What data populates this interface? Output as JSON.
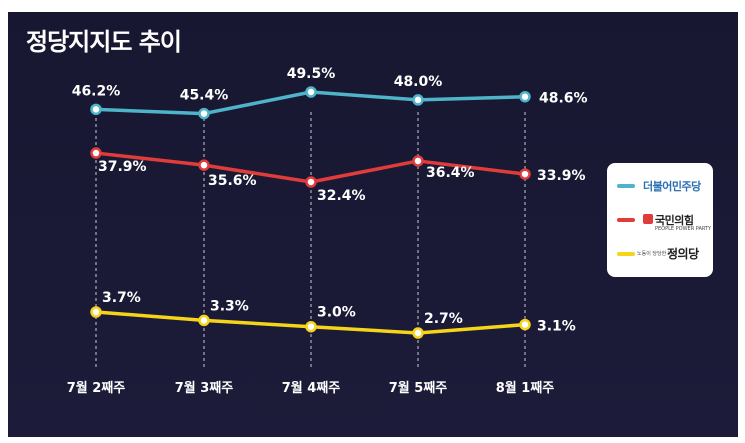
{
  "title": "정당지지도 추이",
  "colors": {
    "background": "#1a1a36",
    "democratic": "#4fb3c9",
    "ppp": "#e03c3c",
    "justice": "#f5d41a"
  },
  "chart_data": {
    "type": "line",
    "title": "정당지지도 추이",
    "categories": [
      "7월 2째주",
      "7월 3째주",
      "7월 4째주",
      "7월 5째주",
      "8월 1째주"
    ],
    "series": [
      {
        "name": "더불어민주당",
        "values": [
          46.2,
          45.4,
          49.5,
          48.0,
          48.6
        ],
        "labels": [
          "46.2%",
          "45.4%",
          "49.5%",
          "48.0%",
          "48.6%"
        ],
        "color": "#4fb3c9"
      },
      {
        "name": "국민의힘",
        "values": [
          37.9,
          35.6,
          32.4,
          36.4,
          33.9
        ],
        "labels": [
          "37.9%",
          "35.6%",
          "32.4%",
          "36.4%",
          "33.9%"
        ],
        "color": "#e03c3c"
      },
      {
        "name": "정의당",
        "values": [
          3.7,
          3.3,
          3.0,
          2.7,
          3.1
        ],
        "labels": [
          "3.7%",
          "3.3%",
          "3.0%",
          "2.7%",
          "3.1%"
        ],
        "color": "#f5d41a"
      }
    ],
    "legend": "right",
    "grid": "vertical dashed"
  },
  "legend": {
    "items": [
      {
        "name": "더불어민주당",
        "color": "#4fb3c9"
      },
      {
        "name": "국민의힘",
        "sub": "PEOPLE POWER PARTY",
        "color": "#e03c3c"
      },
      {
        "name": "정의당",
        "sub": "노동이 당당한 나라",
        "color": "#f5d41a"
      }
    ]
  }
}
